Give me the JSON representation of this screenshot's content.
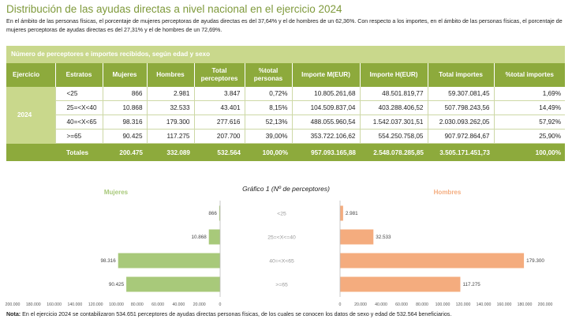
{
  "title": "Distribución de las ayudas directas a nivel nacional en el ejercicio 2024",
  "intro": "En el ámbito de las personas físicas, el porcentaje de mujeres perceptoras de ayudas directas es del 37,64% y el de hombres de un 62,36%. Con respecto a los importes, en el ámbito de las personas físicas, el porcentaje de mujeres perceptoras de ayudas directas es del 27,31% y el de hombres de un 72,69%.",
  "table": {
    "caption": "Número de perceptores e importes recibidos, según edad y sexo",
    "headers": [
      "Ejercicio",
      "Estratos",
      "Mujeres",
      "Hombres",
      "Total perceptores",
      "%total personas",
      "Importe M(EUR)",
      "Importe H(EUR)",
      "Total importes",
      "%total importes"
    ],
    "year": "2024",
    "rows": [
      [
        "<25",
        "866",
        "2.981",
        "3.847",
        "0,72%",
        "10.805.261,68",
        "48.501.819,77",
        "59.307.081,45",
        "1,69%"
      ],
      [
        "25=<X<40",
        "10.868",
        "32.533",
        "43.401",
        "8,15%",
        "104.509.837,04",
        "403.288.406,52",
        "507.798.243,56",
        "14,49%"
      ],
      [
        "40=<X<65",
        "98.316",
        "179.300",
        "277.616",
        "52,13%",
        "488.055.960,54",
        "1.542.037.301,51",
        "2.030.093.262,05",
        "57,92%"
      ],
      [
        ">=65",
        "90.425",
        "117.275",
        "207.700",
        "39,00%",
        "353.722.106,62",
        "554.250.758,05",
        "907.972.864,67",
        "25,90%"
      ]
    ],
    "totals": [
      "Totales",
      "200.475",
      "332.089",
      "532.564",
      "100,00%",
      "957.093.165,88",
      "2.548.078.285,85",
      "3.505.171.451,73",
      "100,00%"
    ]
  },
  "chart_data": {
    "type": "bar",
    "title": "Gráfico 1 (Nº de perceptores)",
    "categories": [
      "<25",
      "25=<X<=40",
      "40=<X<65",
      ">=65"
    ],
    "series": [
      {
        "name": "Mujeres",
        "values": [
          866,
          10868,
          98316,
          90425
        ],
        "labels": [
          "866",
          "10.868",
          "98.316",
          "90.425"
        ],
        "color": "#a8c97a"
      },
      {
        "name": "Hombres",
        "values": [
          2981,
          32533,
          179300,
          117275
        ],
        "labels": [
          "2.981",
          "32.533",
          "179.300",
          "117.275"
        ],
        "color": "#f4ac7e"
      }
    ],
    "left_ticks": [
      "200.000",
      "180.000",
      "160.000",
      "140.000",
      "120.000",
      "100.000",
      "80.000",
      "60.000",
      "40.000",
      "20.000",
      "0"
    ],
    "right_ticks": [
      "0",
      "20.000",
      "40.000",
      "60.000",
      "80.000",
      "100.000",
      "120.000",
      "140.000",
      "160.000",
      "180.000",
      "200.000"
    ],
    "xlim": [
      0,
      200000
    ],
    "colors": {
      "mujeres_label": "#a8c97a",
      "hombres_label": "#f4ac7e"
    }
  },
  "note": {
    "label": "Nota:",
    "text": " En el ejercicio 2024 se contabilizaron 534.651 perceptores de ayudas directas personas físicas, de los cuales se conocen los datos de sexo y edad de 532.564 beneficiarios."
  }
}
